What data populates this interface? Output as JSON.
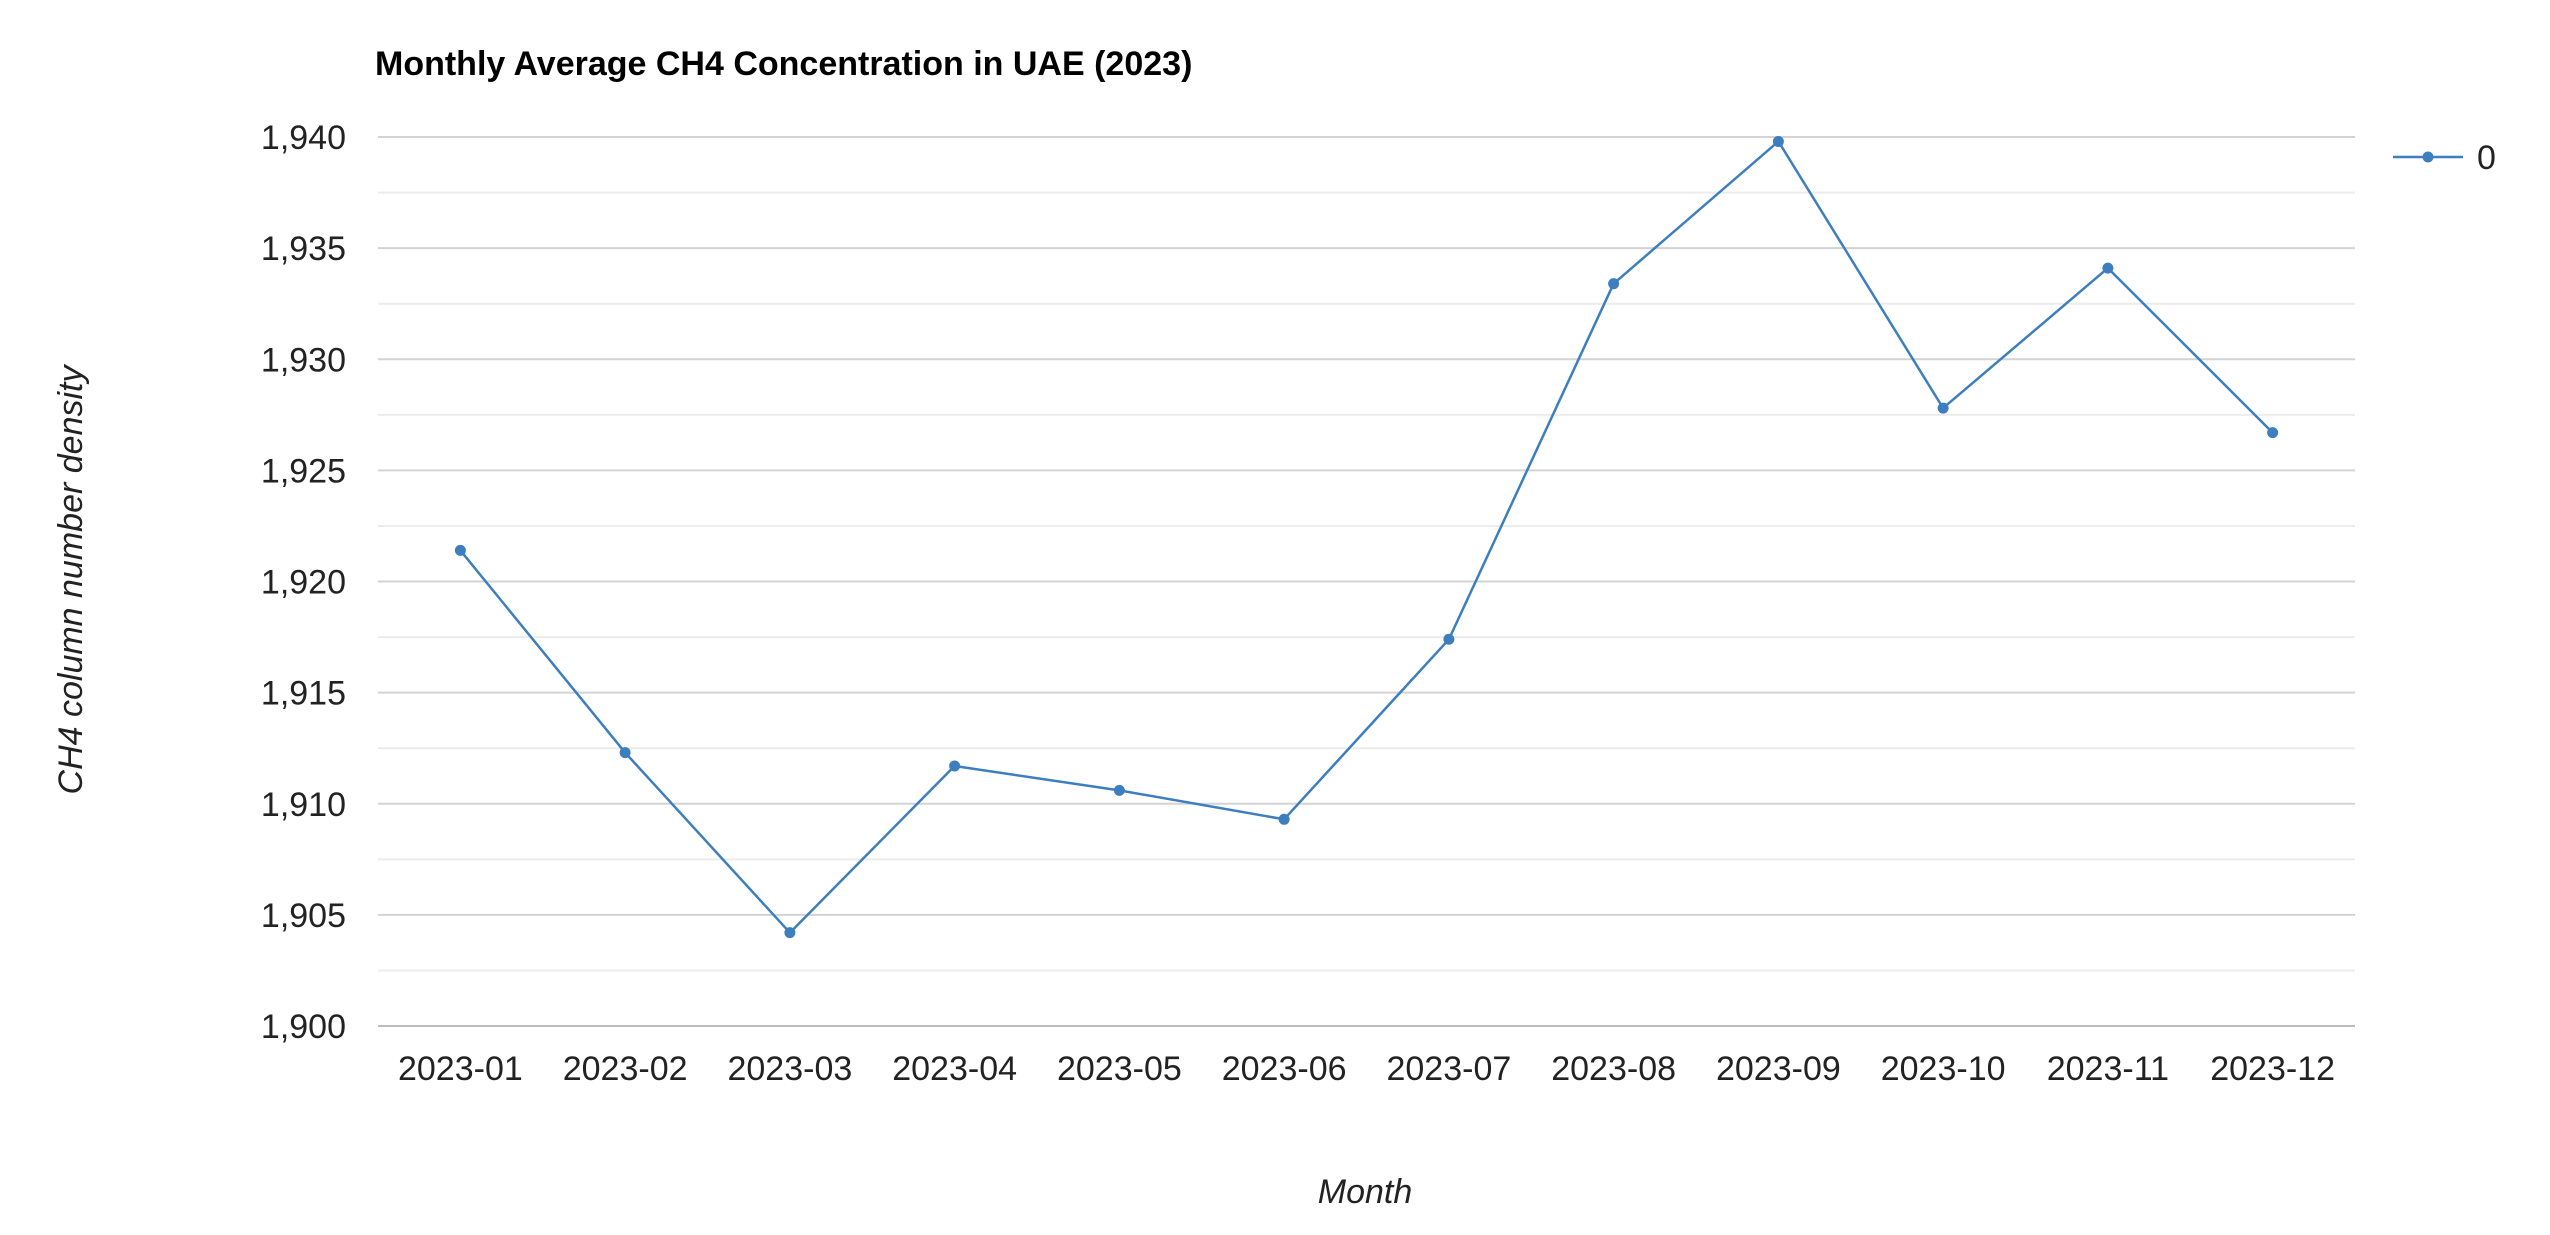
{
  "chart_data": {
    "type": "line",
    "title": "Monthly Average CH4 Concentration in UAE (2023)",
    "xlabel": "Month",
    "ylabel": "CH4 column number density",
    "categories": [
      "2023-01",
      "2023-02",
      "2023-03",
      "2023-04",
      "2023-05",
      "2023-06",
      "2023-07",
      "2023-08",
      "2023-09",
      "2023-10",
      "2023-11",
      "2023-12"
    ],
    "series": [
      {
        "name": "0",
        "color": "#3d7ebf",
        "values": [
          1921.4,
          1912.3,
          1904.2,
          1911.7,
          1910.6,
          1909.3,
          1917.4,
          1933.4,
          1939.8,
          1927.8,
          1934.1,
          1926.7
        ]
      }
    ],
    "ylim": [
      1900,
      1940
    ],
    "yticks": [
      "1,900",
      "1,905",
      "1,910",
      "1,915",
      "1,920",
      "1,925",
      "1,930",
      "1,935",
      "1,940"
    ],
    "grid": true,
    "minor_grid": true,
    "legend_position": "right"
  }
}
